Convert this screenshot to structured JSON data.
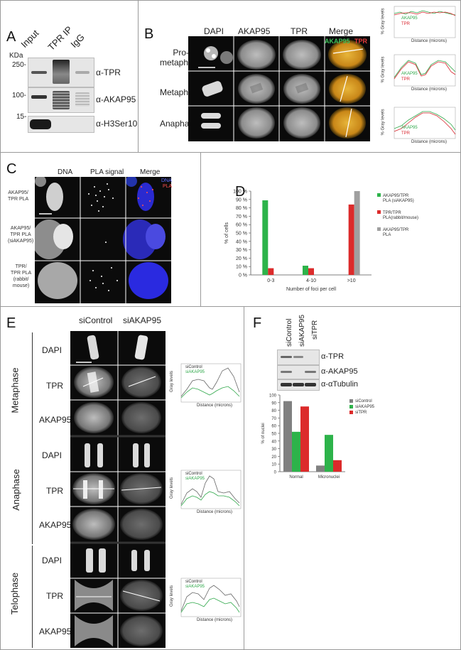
{
  "panel_labels": {
    "a": "A",
    "b": "B",
    "c": "C",
    "d": "D",
    "e": "E",
    "f": "F"
  },
  "panelA": {
    "kda": "KDa",
    "lanes": [
      "Input",
      "TPR IP",
      "IgG"
    ],
    "markers": [
      "250-",
      "100-",
      "15-"
    ],
    "antibodies": [
      "α-TPR",
      "α-AKAP95",
      "α-H3Ser10p"
    ]
  },
  "panelB": {
    "columns": [
      "DAPI",
      "AKAP95",
      "TPR",
      "Merge"
    ],
    "merge_akap": "AKAP95",
    "merge_tpr": "TPR",
    "rows": [
      "Pro-\nmetaphase",
      "Metaphase",
      "Anaphase"
    ],
    "plot_ylabel": "% Gray levels",
    "plot_xlabel": "Distance (microns)",
    "legend": [
      "AKAP95",
      "TPR"
    ],
    "colors": {
      "akap": "#2fa84a",
      "tpr": "#d8242c"
    }
  },
  "panelC": {
    "columns": [
      "DNA",
      "PLA signal",
      "Merge"
    ],
    "merge_dna": "DNA",
    "merge_pla": "PLA",
    "rows": [
      "AKAP95/\nTPR PLA",
      "AKAP95/\nTPR PLA\n(siAKAP95)",
      "TPR/\nTPR PLA\n(rabbit/\nmouse)"
    ]
  },
  "panelD": {
    "chart_data": {
      "type": "bar",
      "categories": [
        "0-3",
        "4-10",
        ">10"
      ],
      "series": [
        {
          "name": "AKAP95/TPR PLA (siAKAP95)",
          "color": "#2db34a",
          "values": [
            89,
            11,
            0
          ]
        },
        {
          "name": "TPR/TPR PLA(rabbit/mouse)",
          "color": "#dc2b2b",
          "values": [
            8,
            8,
            84
          ]
        },
        {
          "name": "AKAP95/TPR PLA",
          "color": "#a0a0a0",
          "values": [
            0,
            0,
            100
          ]
        }
      ],
      "ylabel": "% of cells",
      "xlabel": "Number of foci per cell",
      "ylim": [
        0,
        100
      ],
      "yticks": [
        "0 %",
        "10 %",
        "20 %",
        "30 %",
        "40 %",
        "50 %",
        "60 %",
        "70 %",
        "80 %",
        "90 %",
        "100 %"
      ]
    }
  },
  "panelE": {
    "columns": [
      "siControl",
      "siAKAP95"
    ],
    "phases": [
      "Metaphase",
      "Anaphase",
      "Telophase"
    ],
    "rows": [
      "DAPI",
      "TPR",
      "AKAP95"
    ],
    "plot_legend": [
      "siControl",
      "siAKAP95"
    ],
    "plot_ylabel": "Gray levels",
    "plot_xlabel": "Distance (microns)"
  },
  "panelF": {
    "lanes": [
      "siControl",
      "siAKAP95",
      "siTPR"
    ],
    "antibodies": [
      "α-TPR",
      "α-AKAP95",
      "α-αTubulin"
    ],
    "chart_data": {
      "type": "bar",
      "categories": [
        "Normal",
        "Micronuclei"
      ],
      "series": [
        {
          "name": "siControl",
          "color": "#808080",
          "values": [
            92,
            8
          ]
        },
        {
          "name": "siAKAP95",
          "color": "#2db34a",
          "values": [
            52,
            48
          ]
        },
        {
          "name": "siTPR",
          "color": "#dc2b2b",
          "values": [
            85,
            15
          ]
        }
      ],
      "ylabel": "% of nuclei",
      "ylim": [
        0,
        100
      ],
      "yticks": [
        "0",
        "10",
        "20",
        "30",
        "40",
        "50",
        "60",
        "70",
        "80",
        "90",
        "100"
      ]
    }
  }
}
